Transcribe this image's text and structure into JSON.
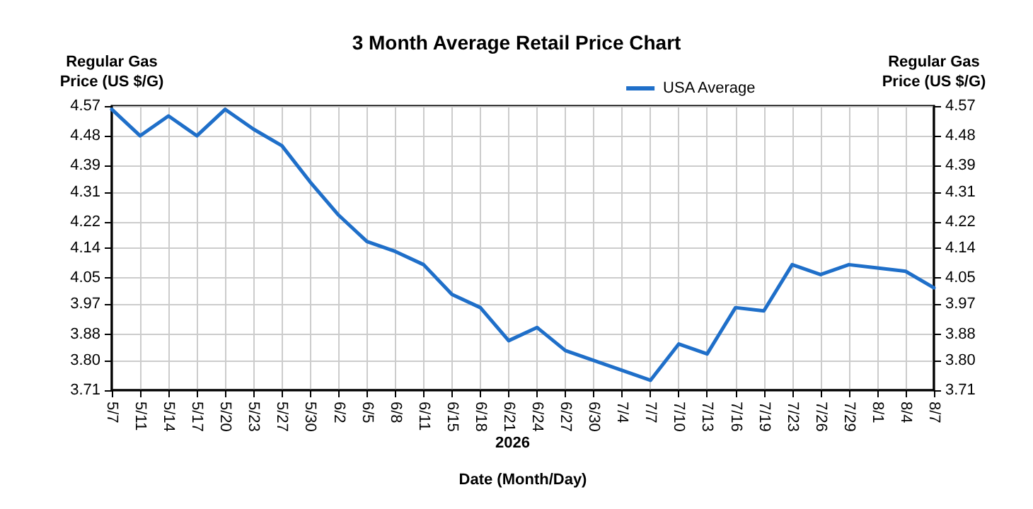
{
  "chart_data": {
    "type": "line",
    "title": "3 Month Average Retail Price Chart",
    "ylabel": "Regular Gas\nPrice (US $/G)",
    "y2label": "Regular Gas\nPrice (US $/G)",
    "xlabel": "Date (Month/Day)",
    "annotations": [
      "2026"
    ],
    "categories": [
      "5/7",
      "5/11",
      "5/14",
      "5/17",
      "5/20",
      "5/23",
      "5/27",
      "5/30",
      "6/2",
      "6/5",
      "6/8",
      "6/11",
      "6/15",
      "6/18",
      "6/21",
      "6/24",
      "6/27",
      "6/30",
      "7/4",
      "7/7",
      "7/10",
      "7/13",
      "7/16",
      "7/19",
      "7/23",
      "7/26",
      "7/29",
      "8/1",
      "8/4",
      "8/7"
    ],
    "series": [
      {
        "name": "USA Average",
        "color": "#1f6fc9",
        "values": [
          4.56,
          4.48,
          4.54,
          4.48,
          4.56,
          4.5,
          4.45,
          4.34,
          4.24,
          4.16,
          4.13,
          4.09,
          4.0,
          3.96,
          3.86,
          3.9,
          3.83,
          3.8,
          3.77,
          3.74,
          3.85,
          3.82,
          3.96,
          3.95,
          4.09,
          4.06,
          4.09,
          4.08,
          4.07,
          4.02
        ]
      }
    ],
    "ylim": [
      3.71,
      4.57
    ],
    "yticks": [
      3.71,
      {
        "value": 3.8,
        "label": "3.80"
      },
      3.88,
      3.97,
      4.05,
      4.14,
      4.22,
      4.31,
      4.39,
      4.48,
      4.57
    ],
    "y2lim": [
      3.71,
      4.57
    ],
    "y2ticks": [
      3.71,
      {
        "value": 3.8,
        "label": "3.80"
      },
      3.88,
      3.97,
      4.05,
      4.14,
      4.22,
      4.31,
      4.39,
      4.48,
      4.57
    ],
    "grid": true,
    "legend": "top right",
    "line_style": "solid",
    "marker": "none"
  }
}
